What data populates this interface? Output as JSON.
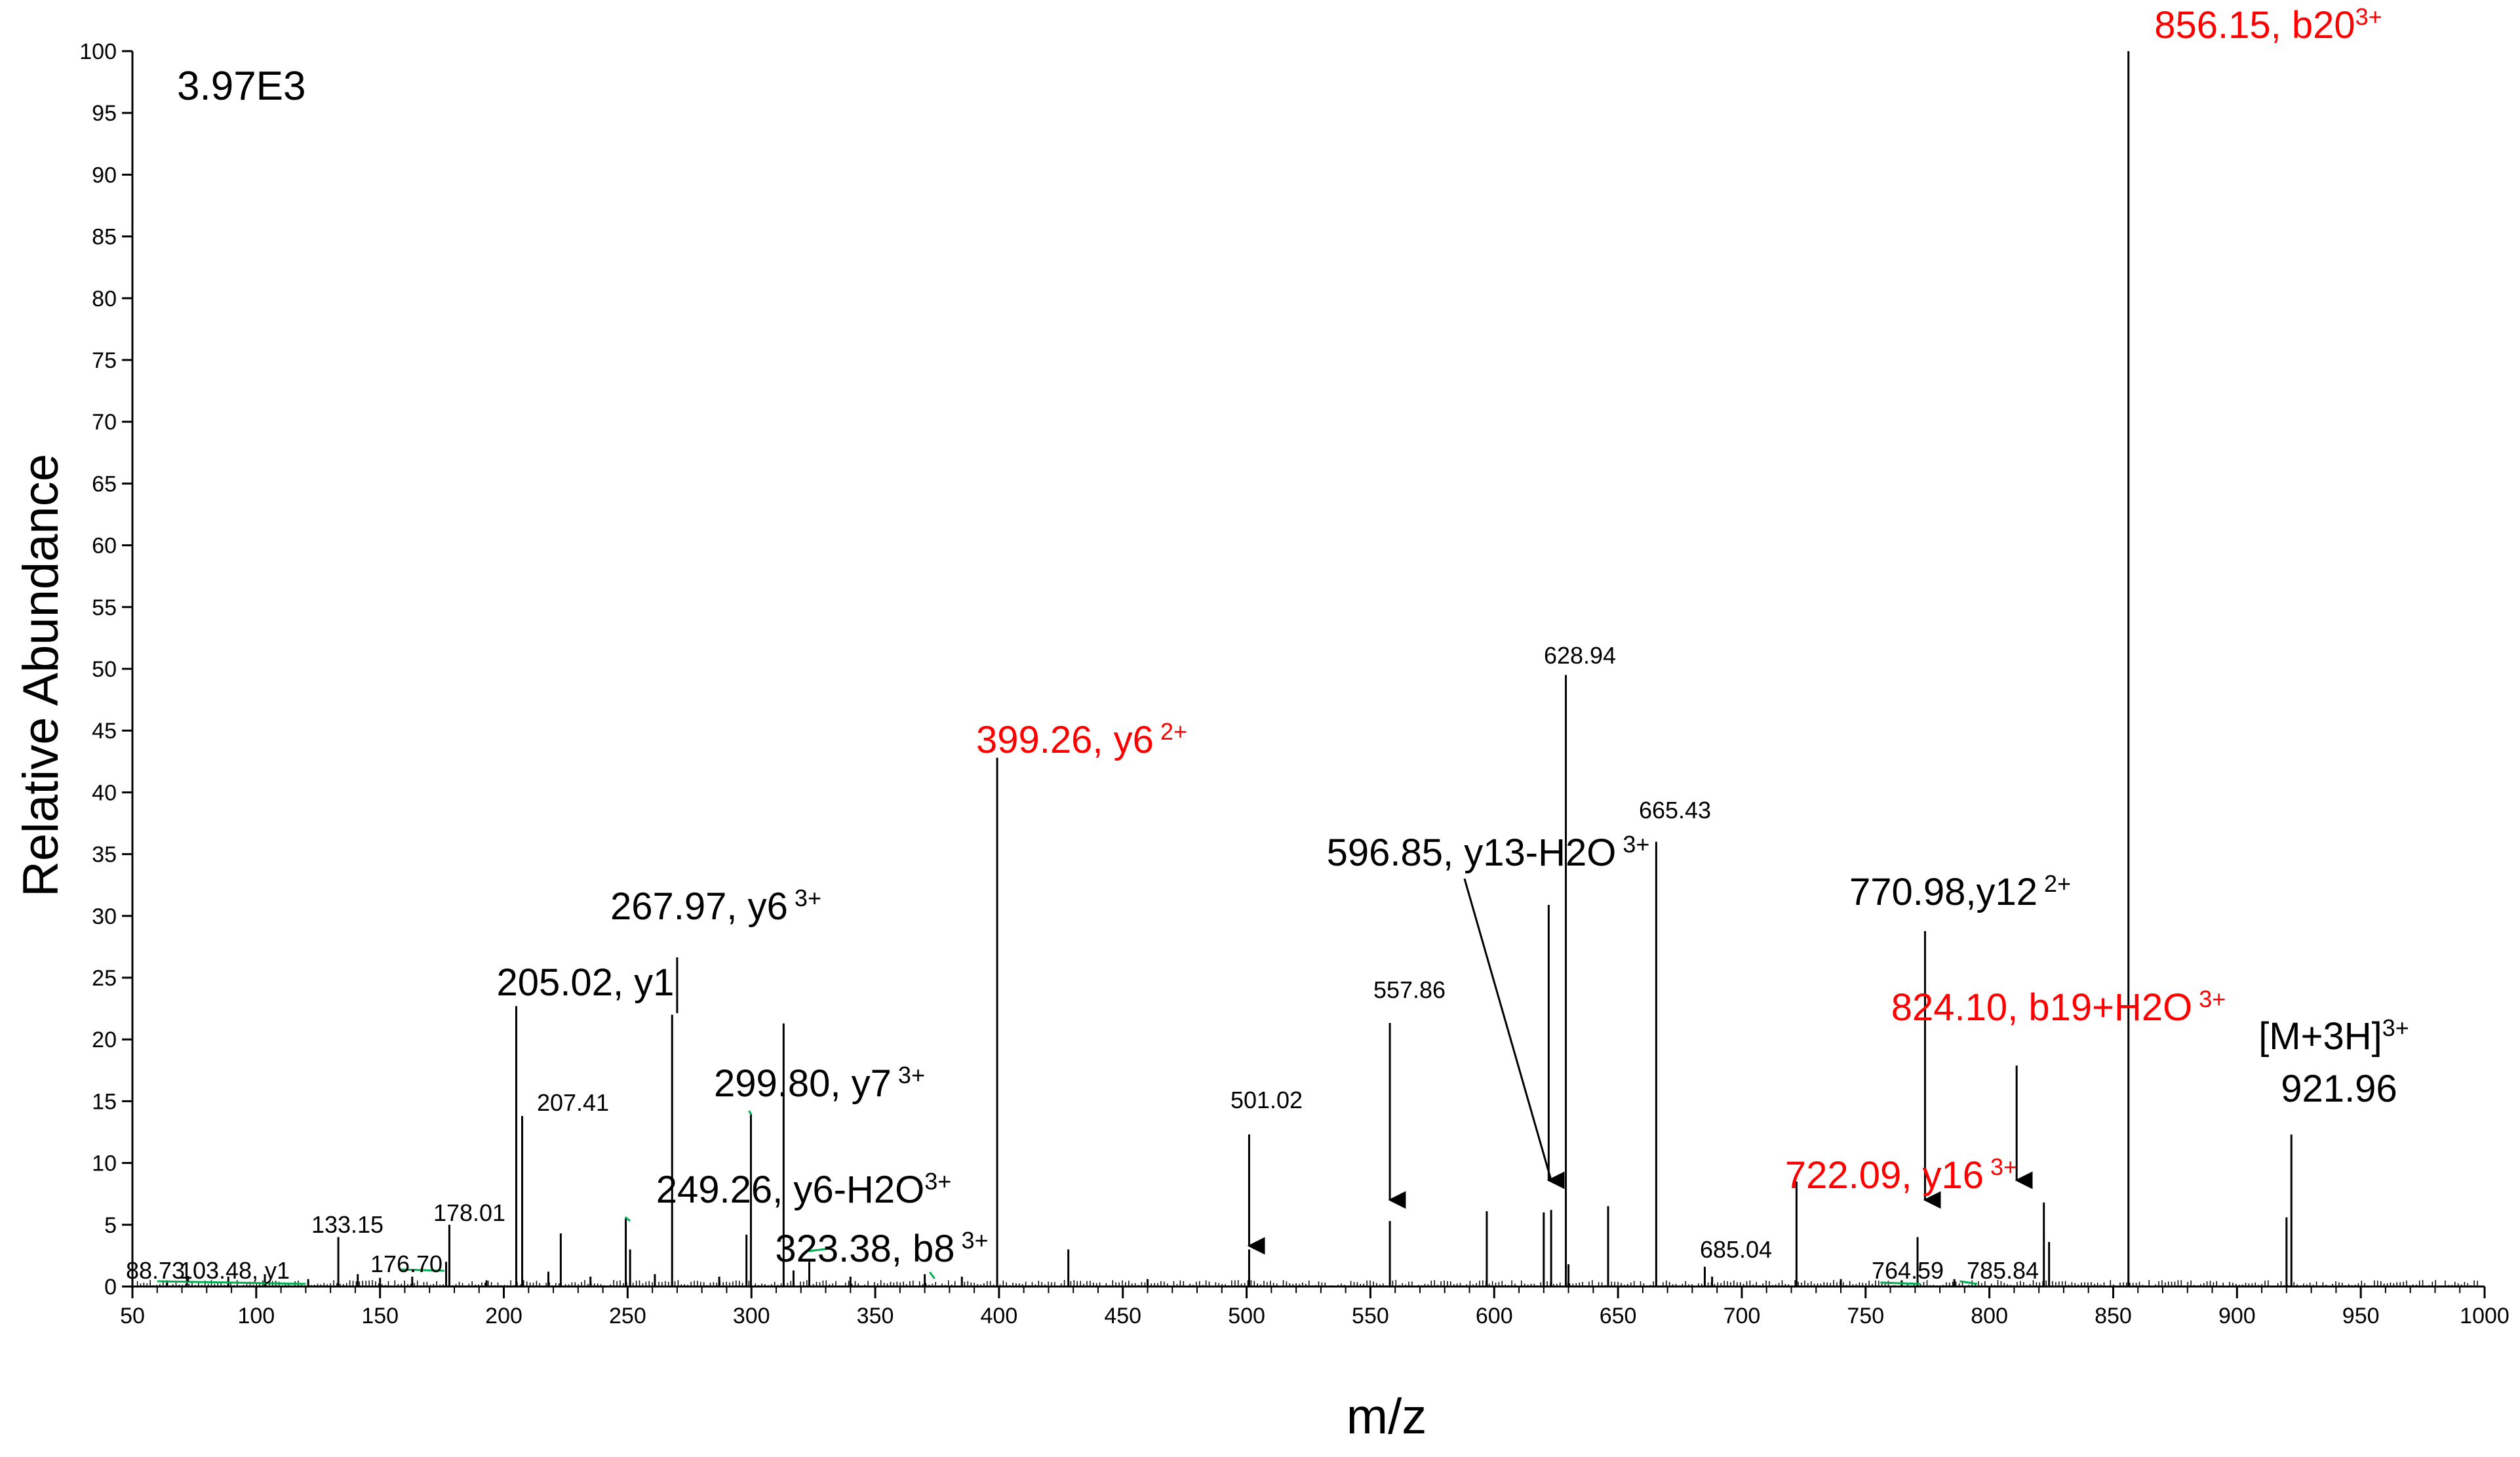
{
  "chart_data": {
    "type": "bar",
    "subtype": "mass-spectrum",
    "title": "",
    "normalization_label": "3.97E3",
    "xlabel": "m/z",
    "ylabel": "Relative Abundance",
    "xlim": [
      50,
      1000
    ],
    "ylim": [
      0,
      100
    ],
    "xticks": [
      50,
      100,
      150,
      200,
      250,
      300,
      350,
      400,
      450,
      500,
      550,
      600,
      650,
      700,
      750,
      800,
      850,
      900,
      950,
      1000
    ],
    "yticks": [
      0,
      5,
      10,
      15,
      20,
      25,
      30,
      35,
      40,
      45,
      50,
      55,
      60,
      65,
      70,
      75,
      80,
      85,
      90,
      95,
      100
    ],
    "grid": false,
    "legend": "none",
    "colors": {
      "default": "#000000",
      "highlight": "#ff0000",
      "marker": "#00b050"
    },
    "peaks": [
      {
        "mz": 64,
        "y": 0.5
      },
      {
        "mz": 72,
        "y": 0.8
      },
      {
        "mz": 88.73,
        "y": 0.8
      },
      {
        "mz": 103.48,
        "y": 1.0
      },
      {
        "mz": 121,
        "y": 0.6
      },
      {
        "mz": 133.15,
        "y": 4.0
      },
      {
        "mz": 141,
        "y": 1.0
      },
      {
        "mz": 150,
        "y": 0.7
      },
      {
        "mz": 163,
        "y": 0.8
      },
      {
        "mz": 176.7,
        "y": 2.0
      },
      {
        "mz": 178.01,
        "y": 5.0
      },
      {
        "mz": 193,
        "y": 0.5
      },
      {
        "mz": 205.02,
        "y": 22.7
      },
      {
        "mz": 207.41,
        "y": 13.8
      },
      {
        "mz": 218,
        "y": 1.2
      },
      {
        "mz": 223,
        "y": 4.3
      },
      {
        "mz": 235,
        "y": 0.8
      },
      {
        "mz": 249.26,
        "y": 5.5
      },
      {
        "mz": 251,
        "y": 3.0
      },
      {
        "mz": 261,
        "y": 1.0
      },
      {
        "mz": 267.97,
        "y": 22.0
      },
      {
        "mz": 287,
        "y": 0.8
      },
      {
        "mz": 298,
        "y": 4.2
      },
      {
        "mz": 299.8,
        "y": 14.0
      },
      {
        "mz": 313,
        "y": 21.3
      },
      {
        "mz": 317,
        "y": 1.3
      },
      {
        "mz": 323.38,
        "y": 2.0
      },
      {
        "mz": 340,
        "y": 0.8
      },
      {
        "mz": 370,
        "y": 1.0
      },
      {
        "mz": 385,
        "y": 0.8
      },
      {
        "mz": 399.26,
        "y": 42.8
      },
      {
        "mz": 428,
        "y": 3.0
      },
      {
        "mz": 460,
        "y": 0.6
      },
      {
        "mz": 501.02,
        "y": 3.0
      },
      {
        "mz": 557.86,
        "y": 5.3
      },
      {
        "mz": 597,
        "y": 6.1
      },
      {
        "mz": 620,
        "y": 6.0
      },
      {
        "mz": 623,
        "y": 6.2
      },
      {
        "mz": 628.94,
        "y": 49.5
      },
      {
        "mz": 630,
        "y": 1.8
      },
      {
        "mz": 646,
        "y": 6.5
      },
      {
        "mz": 665.43,
        "y": 36.0
      },
      {
        "mz": 685.04,
        "y": 1.6
      },
      {
        "mz": 688,
        "y": 0.8
      },
      {
        "mz": 722.09,
        "y": 8.5
      },
      {
        "mz": 740,
        "y": 0.6
      },
      {
        "mz": 764.59,
        "y": 0.5
      },
      {
        "mz": 770.98,
        "y": 4.0
      },
      {
        "mz": 785.84,
        "y": 0.6
      },
      {
        "mz": 822,
        "y": 6.8
      },
      {
        "mz": 824.1,
        "y": 3.6
      },
      {
        "mz": 856.15,
        "y": 100
      },
      {
        "mz": 920,
        "y": 5.6
      },
      {
        "mz": 921.96,
        "y": 12.3
      }
    ],
    "small_labels": [
      {
        "id": "l88",
        "text": "88.73,"
      },
      {
        "id": "l103",
        "text": "103.48, y1"
      },
      {
        "id": "l133",
        "text": "133.15"
      },
      {
        "id": "l176",
        "text": "176.70"
      },
      {
        "id": "l178",
        "text": "178.01"
      },
      {
        "id": "l207",
        "text": "207.41"
      },
      {
        "id": "l501",
        "text": "501.02"
      },
      {
        "id": "l557",
        "text": "557.86"
      },
      {
        "id": "l628",
        "text": "628.94"
      },
      {
        "id": "l665",
        "text": "665.43"
      },
      {
        "id": "l685",
        "text": "685.04"
      },
      {
        "id": "l764",
        "text": "764.59"
      },
      {
        "id": "l785",
        "text": "785.84"
      }
    ],
    "annotations": [
      {
        "id": "a205",
        "text": "205.02, y1",
        "sup": "",
        "color": "black"
      },
      {
        "id": "a267",
        "text": "267.97, y6",
        "sup": " 3+",
        "color": "black"
      },
      {
        "id": "a299",
        "text": "299.80, y7",
        "sup": " 3+",
        "color": "black"
      },
      {
        "id": "a249",
        "text": "249.26, y6-H2O",
        "sup": "3+",
        "color": "black"
      },
      {
        "id": "a323",
        "text": "323.38, b8",
        "sup": " 3+",
        "color": "black"
      },
      {
        "id": "a399",
        "text": "399.26, y6",
        "sup": " 2+",
        "color": "red"
      },
      {
        "id": "a596",
        "text": "596.85, y13-H2O",
        "sup": " 3+",
        "color": "black"
      },
      {
        "id": "a770",
        "text": "770.98,y12",
        "sup": " 2+",
        "color": "black"
      },
      {
        "id": "a824",
        "text": "824.10, b19+H2O",
        "sup": " 3+",
        "color": "red"
      },
      {
        "id": "a722",
        "text": "722.09, y16",
        "sup": " 3+",
        "color": "red"
      },
      {
        "id": "a856",
        "text": "856.15, b20",
        "sup": "3+",
        "color": "red"
      },
      {
        "id": "aM1",
        "text": "[M+3H]",
        "sup": "3+",
        "color": "black"
      },
      {
        "id": "aM2",
        "text": "921.96",
        "sup": "",
        "color": "black"
      }
    ]
  }
}
